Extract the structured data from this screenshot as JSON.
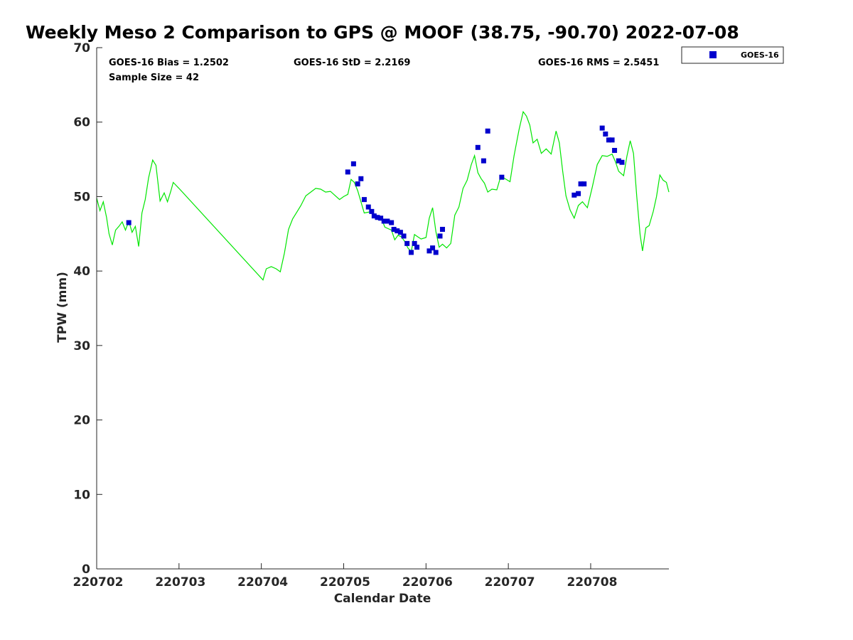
{
  "chart_data": {
    "type": "scatter",
    "title": "Weekly Meso 2 Comparison to GPS @ MOOF (38.75, -90.70) 2022-07-08",
    "xlabel": "Calendar Date",
    "ylabel": "TPW (mm)",
    "xlim": [
      220702.0,
      220708.95
    ],
    "ylim": [
      0,
      70
    ],
    "x_ticks": [
      "220702",
      "220703",
      "220704",
      "220705",
      "220706",
      "220707",
      "220708"
    ],
    "y_ticks": [
      "0",
      "10",
      "20",
      "30",
      "40",
      "50",
      "60",
      "70"
    ],
    "grid": false,
    "legend": {
      "position": "top-right",
      "entries": [
        "GOES-16"
      ]
    },
    "stats": {
      "bias": "GOES-16 Bias = 1.2502",
      "std": "GOES-16 StD = 2.2169",
      "rms": "GOES-16 RMS = 2.5451",
      "sample": "Sample Size = 42"
    },
    "colors": {
      "gps_line": "#00e600",
      "goes": "#0000cd"
    },
    "series": [
      {
        "name": "GOES-16",
        "kind": "scatter",
        "points": [
          [
            220702.39,
            46.5
          ],
          [
            220705.05,
            53.3
          ],
          [
            220705.12,
            54.4
          ],
          [
            220705.17,
            51.7
          ],
          [
            220705.21,
            52.4
          ],
          [
            220705.25,
            49.6
          ],
          [
            220705.3,
            48.6
          ],
          [
            220705.34,
            48.0
          ],
          [
            220705.37,
            47.4
          ],
          [
            220705.41,
            47.2
          ],
          [
            220705.45,
            47.1
          ],
          [
            220705.49,
            46.7
          ],
          [
            220705.53,
            46.7
          ],
          [
            220705.58,
            46.5
          ],
          [
            220705.61,
            45.6
          ],
          [
            220705.65,
            45.4
          ],
          [
            220705.69,
            45.2
          ],
          [
            220705.73,
            44.7
          ],
          [
            220705.77,
            43.7
          ],
          [
            220705.82,
            42.5
          ],
          [
            220705.86,
            43.7
          ],
          [
            220705.89,
            43.2
          ],
          [
            220706.04,
            42.7
          ],
          [
            220706.08,
            43.1
          ],
          [
            220706.12,
            42.5
          ],
          [
            220706.17,
            44.7
          ],
          [
            220706.2,
            45.6
          ],
          [
            220706.63,
            56.6
          ],
          [
            220706.7,
            54.8
          ],
          [
            220706.75,
            58.8
          ],
          [
            220706.92,
            52.6
          ],
          [
            220707.8,
            50.2
          ],
          [
            220707.85,
            50.4
          ],
          [
            220707.88,
            51.7
          ],
          [
            220707.92,
            51.7
          ],
          [
            220708.14,
            59.2
          ],
          [
            220708.18,
            58.4
          ],
          [
            220708.22,
            57.6
          ],
          [
            220708.26,
            57.6
          ],
          [
            220708.29,
            56.2
          ],
          [
            220708.34,
            54.8
          ],
          [
            220708.38,
            54.6
          ]
        ]
      },
      {
        "kind": "line",
        "points": [
          [
            220702.0,
            49.8
          ],
          [
            220702.04,
            48.1
          ],
          [
            220702.08,
            49.3
          ],
          [
            220702.12,
            47.2
          ],
          [
            220702.15,
            45.0
          ],
          [
            220702.19,
            43.5
          ],
          [
            220702.23,
            45.5
          ],
          [
            220702.27,
            46.0
          ],
          [
            220702.31,
            46.6
          ],
          [
            220702.35,
            45.5
          ],
          [
            220702.39,
            46.7
          ],
          [
            220702.43,
            45.2
          ],
          [
            220702.47,
            46.0
          ],
          [
            220702.51,
            43.3
          ],
          [
            220702.55,
            47.8
          ],
          [
            220702.59,
            49.6
          ],
          [
            220702.63,
            52.5
          ],
          [
            220702.68,
            54.9
          ],
          [
            220702.72,
            54.2
          ],
          [
            220702.77,
            49.4
          ],
          [
            220702.82,
            50.5
          ],
          [
            220702.86,
            49.3
          ],
          [
            220702.9,
            50.7
          ],
          [
            220702.93,
            51.9
          ],
          [
            220703.0,
            51.1
          ],
          [
            220704.02,
            38.8
          ],
          [
            220704.06,
            40.3
          ],
          [
            220704.12,
            40.6
          ],
          [
            220704.18,
            40.3
          ],
          [
            220704.23,
            39.9
          ],
          [
            220704.28,
            42.4
          ],
          [
            220704.33,
            45.6
          ],
          [
            220704.38,
            47.0
          ],
          [
            220704.43,
            47.9
          ],
          [
            220704.48,
            48.8
          ],
          [
            220704.54,
            50.1
          ],
          [
            220704.6,
            50.6
          ],
          [
            220704.66,
            51.1
          ],
          [
            220704.72,
            51.0
          ],
          [
            220704.78,
            50.6
          ],
          [
            220704.84,
            50.7
          ],
          [
            220704.9,
            50.1
          ],
          [
            220704.95,
            49.6
          ],
          [
            220705.0,
            50.0
          ],
          [
            220705.05,
            50.3
          ],
          [
            220705.09,
            52.3
          ],
          [
            220705.13,
            51.9
          ],
          [
            220705.17,
            50.8
          ],
          [
            220705.21,
            49.3
          ],
          [
            220705.25,
            47.8
          ],
          [
            220705.3,
            47.9
          ],
          [
            220705.34,
            48.0
          ],
          [
            220705.38,
            47.5
          ],
          [
            220705.42,
            46.9
          ],
          [
            220705.46,
            47.0
          ],
          [
            220705.5,
            45.9
          ],
          [
            220705.54,
            45.7
          ],
          [
            220705.58,
            45.5
          ],
          [
            220705.62,
            44.2
          ],
          [
            220705.66,
            44.8
          ],
          [
            220705.7,
            44.6
          ],
          [
            220705.74,
            44.0
          ],
          [
            220705.78,
            43.1
          ],
          [
            220705.82,
            42.6
          ],
          [
            220705.86,
            44.9
          ],
          [
            220705.9,
            44.6
          ],
          [
            220705.94,
            44.3
          ],
          [
            220706.0,
            44.5
          ],
          [
            220706.04,
            47.1
          ],
          [
            220706.08,
            48.5
          ],
          [
            220706.12,
            45.3
          ],
          [
            220706.16,
            43.2
          ],
          [
            220706.2,
            43.6
          ],
          [
            220706.25,
            43.1
          ],
          [
            220706.3,
            43.7
          ],
          [
            220706.35,
            47.5
          ],
          [
            220706.4,
            48.6
          ],
          [
            220706.45,
            51.1
          ],
          [
            220706.5,
            52.2
          ],
          [
            220706.55,
            54.3
          ],
          [
            220706.59,
            55.5
          ],
          [
            220706.63,
            53.2
          ],
          [
            220706.67,
            52.4
          ],
          [
            220706.71,
            51.8
          ],
          [
            220706.75,
            50.6
          ],
          [
            220706.8,
            51.0
          ],
          [
            220706.86,
            50.9
          ],
          [
            220706.91,
            52.8
          ],
          [
            220706.96,
            52.4
          ],
          [
            220707.02,
            52.0
          ],
          [
            220707.07,
            55.5
          ],
          [
            220707.13,
            59.0
          ],
          [
            220707.18,
            61.4
          ],
          [
            220707.22,
            60.8
          ],
          [
            220707.26,
            59.6
          ],
          [
            220707.3,
            57.2
          ],
          [
            220707.35,
            57.7
          ],
          [
            220707.4,
            55.8
          ],
          [
            220707.46,
            56.4
          ],
          [
            220707.52,
            55.7
          ],
          [
            220707.58,
            58.8
          ],
          [
            220707.62,
            57.2
          ],
          [
            220707.66,
            53.4
          ],
          [
            220707.7,
            50.1
          ],
          [
            220707.75,
            48.2
          ],
          [
            220707.8,
            47.1
          ],
          [
            220707.85,
            48.8
          ],
          [
            220707.9,
            49.3
          ],
          [
            220707.96,
            48.5
          ],
          [
            220708.02,
            51.3
          ],
          [
            220708.08,
            54.3
          ],
          [
            220708.14,
            55.5
          ],
          [
            220708.2,
            55.4
          ],
          [
            220708.26,
            55.7
          ],
          [
            220708.3,
            54.7
          ],
          [
            220708.34,
            53.4
          ],
          [
            220708.4,
            52.8
          ],
          [
            220708.44,
            55.4
          ],
          [
            220708.48,
            57.5
          ],
          [
            220708.52,
            55.8
          ],
          [
            220708.56,
            50.0
          ],
          [
            220708.6,
            44.9
          ],
          [
            220708.63,
            42.7
          ],
          [
            220708.67,
            45.8
          ],
          [
            220708.71,
            46.1
          ],
          [
            220708.76,
            48.0
          ],
          [
            220708.8,
            50.0
          ],
          [
            220708.84,
            52.9
          ],
          [
            220708.88,
            52.2
          ],
          [
            220708.92,
            51.9
          ],
          [
            220708.95,
            50.6
          ]
        ]
      }
    ]
  }
}
